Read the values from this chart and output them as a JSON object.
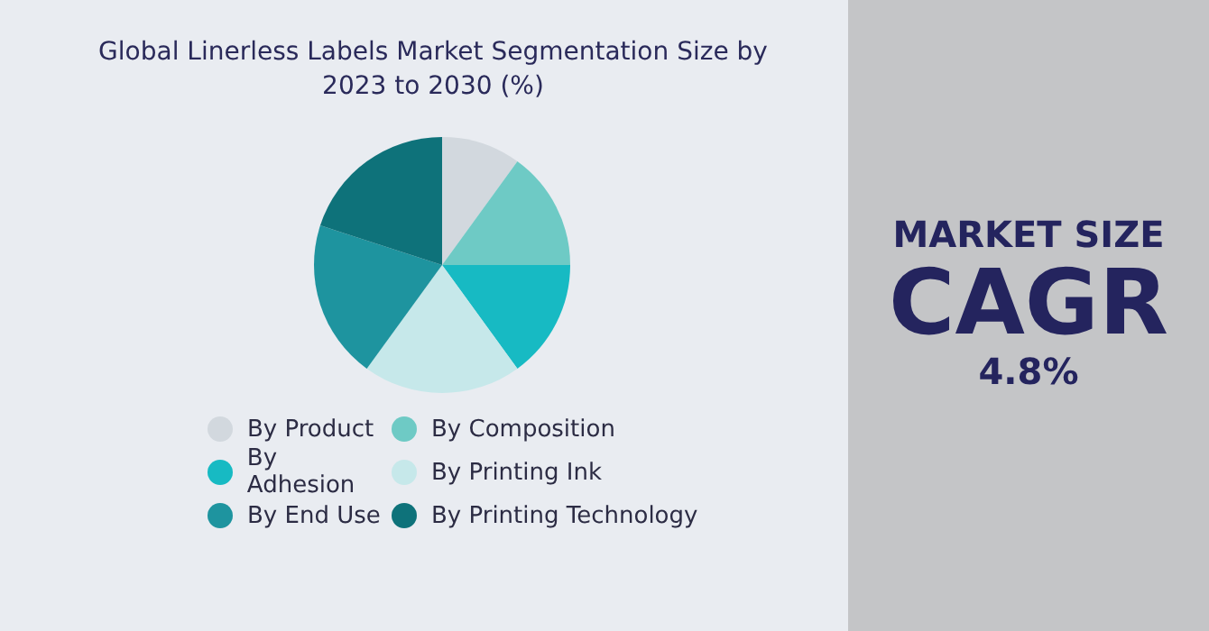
{
  "chart_data": {
    "type": "pie",
    "title": "Global Linerless Labels Market Segmentation Size by 2023 to 2030 (%)",
    "categories": [
      "By Product",
      "By Composition",
      "By Adhesion",
      "By Printing Ink",
      "By End Use",
      "By Printing Technology"
    ],
    "values": [
      10,
      15,
      15,
      20,
      20,
      20
    ],
    "colors": [
      "#d2d8de",
      "#6ecac5",
      "#17bac3",
      "#c6e8ea",
      "#1e949f",
      "#0e727a"
    ],
    "legend": "bottom",
    "annotations": [
      "MARKET SIZE",
      "CAGR",
      "4.8%"
    ]
  }
}
